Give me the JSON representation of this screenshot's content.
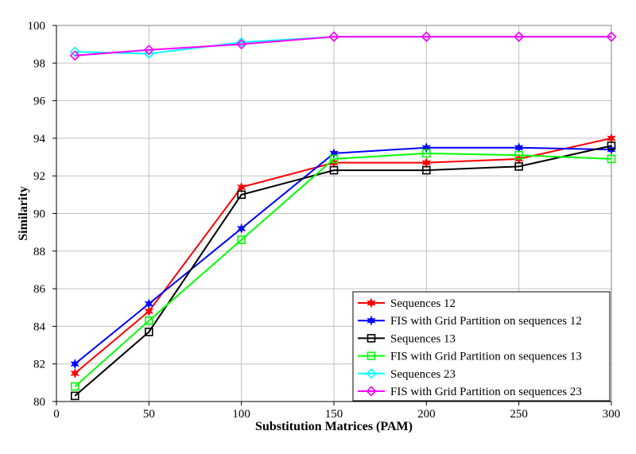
{
  "chart_data": {
    "type": "line",
    "xlabel": "Substitution Matrices (PAM)",
    "ylabel": "Similarity",
    "xlim": [
      0,
      300
    ],
    "ylim": [
      80,
      100
    ],
    "xticks": [
      0,
      50,
      100,
      150,
      200,
      250,
      300
    ],
    "yticks": [
      80,
      82,
      84,
      86,
      88,
      90,
      92,
      94,
      96,
      98,
      100
    ],
    "grid": true,
    "legend_position": "bottom-right",
    "x": [
      10,
      50,
      100,
      150,
      200,
      250,
      300
    ],
    "series": [
      {
        "name": "Sequences 12",
        "color": "#ff0000",
        "marker": "star",
        "values": [
          81.5,
          84.8,
          91.4,
          92.7,
          92.7,
          92.9,
          94.0
        ]
      },
      {
        "name": "FIS with Grid Partition on sequences 12",
        "color": "#0000ff",
        "marker": "star",
        "values": [
          82.0,
          85.2,
          89.2,
          93.2,
          93.5,
          93.5,
          93.4
        ]
      },
      {
        "name": "Sequences 13",
        "color": "#000000",
        "marker": "square",
        "values": [
          80.3,
          83.7,
          91.0,
          92.3,
          92.3,
          92.5,
          93.6
        ]
      },
      {
        "name": "FIS with Grid Partition on sequences 13",
        "color": "#00ff00",
        "marker": "square",
        "values": [
          80.8,
          84.3,
          88.6,
          92.9,
          93.2,
          93.1,
          92.9
        ]
      },
      {
        "name": "Sequences 23",
        "color": "#00ffff",
        "marker": "diamond",
        "values": [
          98.6,
          98.5,
          99.1,
          99.4,
          99.4,
          99.4,
          99.4
        ]
      },
      {
        "name": "FIS with Grid Partition on sequences 23",
        "color": "#ff00ff",
        "marker": "diamond",
        "values": [
          98.4,
          98.7,
          99.0,
          99.4,
          99.4,
          99.4,
          99.4
        ]
      }
    ]
  }
}
